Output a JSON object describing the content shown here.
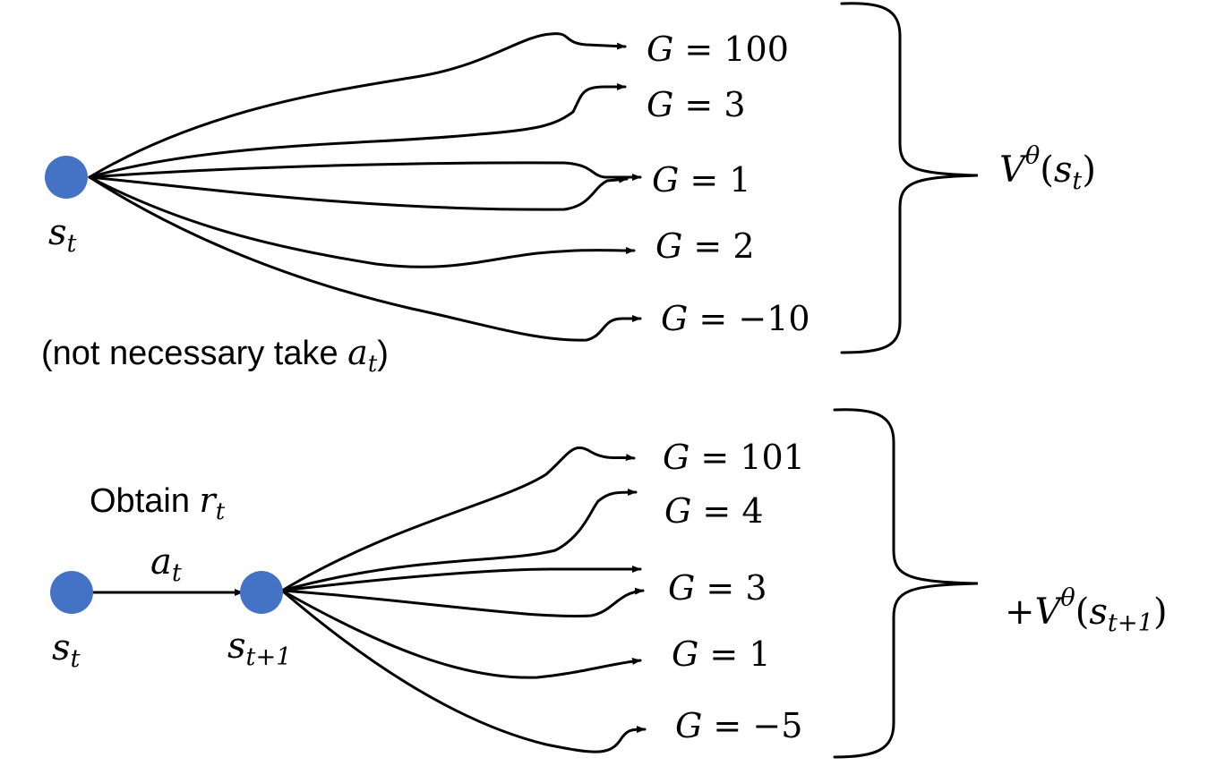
{
  "top": {
    "state": {
      "symbol": "s",
      "sub": "t"
    },
    "returns": [
      "100",
      "3",
      "1",
      "2",
      "−10"
    ],
    "value": {
      "V": "V",
      "sup": "θ",
      "arg": "s",
      "arg_sub": "t"
    },
    "note": {
      "text": "(not necessary take ",
      "symbol": "a",
      "sub": "t",
      "close": ")"
    }
  },
  "bottom": {
    "state_t": {
      "symbol": "s",
      "sub": "t"
    },
    "state_t1": {
      "symbol": "s",
      "sub": "t+1"
    },
    "reward": {
      "text": "Obtain ",
      "symbol": "r",
      "sub": "t"
    },
    "action": {
      "symbol": "a",
      "sub": "t"
    },
    "returns": [
      "101",
      "4",
      "3",
      "1",
      "−5"
    ],
    "value": {
      "prefix": "+",
      "V": "V",
      "sup": "θ",
      "arg": "s",
      "arg_sub": "t+1"
    }
  },
  "return_prefix": "G = ",
  "colors": {
    "node": "#4472c4",
    "line": "#000000"
  }
}
